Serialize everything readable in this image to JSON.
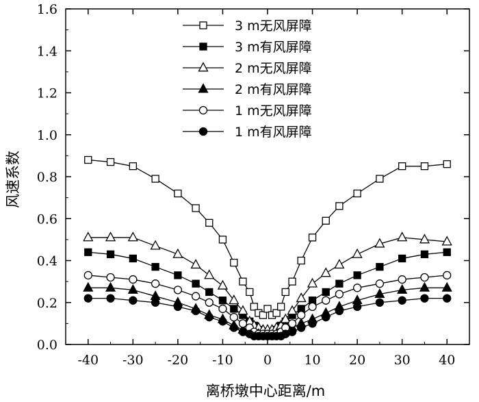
{
  "chart_data": {
    "type": "line",
    "xlabel": "离桥墩中心距离/m",
    "ylabel": "风速系数",
    "xlim": [
      -45,
      45
    ],
    "ylim": [
      0,
      1.6
    ],
    "xticks": [
      -40,
      -30,
      -20,
      -10,
      0,
      10,
      20,
      30,
      40
    ],
    "yticks": [
      0.0,
      0.2,
      0.4,
      0.6,
      0.8,
      1.0,
      1.2,
      1.4,
      1.6
    ],
    "xtick_labels": [
      "-40",
      "-30",
      "-20",
      "-10",
      "0",
      "10",
      "20",
      "30",
      "40"
    ],
    "ytick_labels": [
      "0.0",
      "0.2",
      "0.4",
      "0.6",
      "0.8",
      "1.0",
      "1.2",
      "1.4",
      "1.6"
    ],
    "legend_position": "top-center",
    "grid": false,
    "x": [
      -40,
      -35,
      -30,
      -25,
      -20,
      -16,
      -13,
      -10,
      -7.5,
      -5.5,
      -4,
      -3,
      -2,
      -1,
      0,
      1,
      2,
      3,
      4,
      5.5,
      7.5,
      10,
      13,
      16,
      20,
      25,
      30,
      35,
      40
    ],
    "series": [
      {
        "name": "3 m无风屏障",
        "marker": "square-open",
        "values": [
          0.88,
          0.87,
          0.85,
          0.79,
          0.72,
          0.65,
          0.58,
          0.5,
          0.39,
          0.3,
          0.25,
          0.18,
          0.15,
          0.14,
          0.17,
          0.14,
          0.15,
          0.18,
          0.25,
          0.3,
          0.4,
          0.51,
          0.59,
          0.66,
          0.72,
          0.79,
          0.85,
          0.85,
          0.86
        ]
      },
      {
        "name": "3 m有风屏障",
        "marker": "square-filled",
        "values": [
          0.44,
          0.43,
          0.41,
          0.37,
          0.33,
          0.29,
          0.25,
          0.21,
          0.17,
          0.14,
          0.11,
          0.09,
          0.07,
          0.06,
          0.06,
          0.06,
          0.07,
          0.09,
          0.11,
          0.14,
          0.17,
          0.21,
          0.25,
          0.29,
          0.33,
          0.37,
          0.41,
          0.43,
          0.44
        ]
      },
      {
        "name": "2 m无风屏障",
        "marker": "triangle-open",
        "values": [
          0.51,
          0.51,
          0.51,
          0.47,
          0.43,
          0.38,
          0.33,
          0.28,
          0.21,
          0.16,
          0.11,
          0.09,
          0.08,
          0.07,
          0.07,
          0.07,
          0.08,
          0.09,
          0.12,
          0.16,
          0.22,
          0.29,
          0.34,
          0.38,
          0.43,
          0.48,
          0.51,
          0.5,
          0.49
        ]
      },
      {
        "name": "2 m有风屏障",
        "marker": "triangle-filled",
        "values": [
          0.27,
          0.27,
          0.26,
          0.23,
          0.2,
          0.17,
          0.14,
          0.12,
          0.09,
          0.07,
          0.06,
          0.05,
          0.05,
          0.04,
          0.04,
          0.04,
          0.05,
          0.05,
          0.06,
          0.08,
          0.1,
          0.12,
          0.15,
          0.18,
          0.21,
          0.24,
          0.26,
          0.27,
          0.27
        ]
      },
      {
        "name": "1 m无风屏障",
        "marker": "circle-open",
        "values": [
          0.33,
          0.32,
          0.31,
          0.29,
          0.26,
          0.23,
          0.2,
          0.17,
          0.13,
          0.1,
          0.08,
          0.06,
          0.05,
          0.05,
          0.05,
          0.05,
          0.05,
          0.06,
          0.08,
          0.1,
          0.14,
          0.18,
          0.21,
          0.24,
          0.27,
          0.29,
          0.31,
          0.32,
          0.33
        ]
      },
      {
        "name": "1 m有风屏障",
        "marker": "circle-filled",
        "values": [
          0.22,
          0.22,
          0.21,
          0.2,
          0.18,
          0.16,
          0.13,
          0.11,
          0.08,
          0.06,
          0.05,
          0.04,
          0.04,
          0.04,
          0.04,
          0.04,
          0.04,
          0.04,
          0.05,
          0.06,
          0.08,
          0.1,
          0.13,
          0.16,
          0.18,
          0.2,
          0.21,
          0.22,
          0.22
        ]
      }
    ]
  }
}
